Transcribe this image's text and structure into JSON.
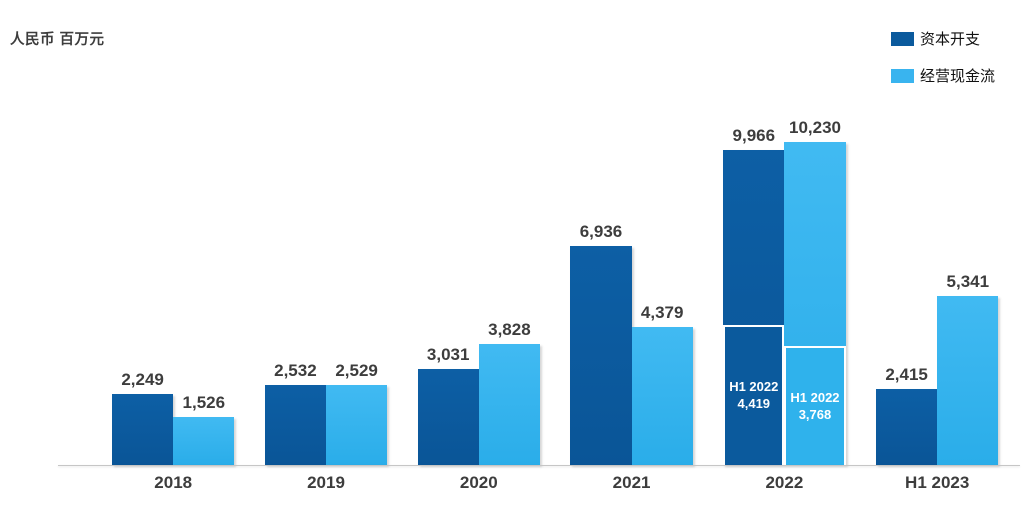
{
  "chart_data": {
    "type": "bar",
    "title": "",
    "unit_label": "人民币 百万元",
    "categories": [
      "2018",
      "2019",
      "2020",
      "2021",
      "2022",
      "H1 2023"
    ],
    "series": [
      {
        "name": "资本开支",
        "color": "#0b5a9d",
        "values": [
          2249,
          2532,
          3031,
          6936,
          9966,
          2415
        ]
      },
      {
        "name": "经营现金流",
        "color": "#39b4ef",
        "values": [
          1526,
          2529,
          3828,
          4379,
          10230,
          5341
        ]
      }
    ],
    "inner_annotations": [
      {
        "series_index": 0,
        "category": "2022",
        "label": "H1 2022",
        "value": 4419
      },
      {
        "series_index": 1,
        "category": "2022",
        "label": "H1 2022",
        "value": 3768
      }
    ],
    "ylim": [
      0,
      10900
    ],
    "grid": false,
    "legend_position": "top-right",
    "value_label_color": "#3d3d3d",
    "axis_line_color": "#c6c6c6"
  }
}
